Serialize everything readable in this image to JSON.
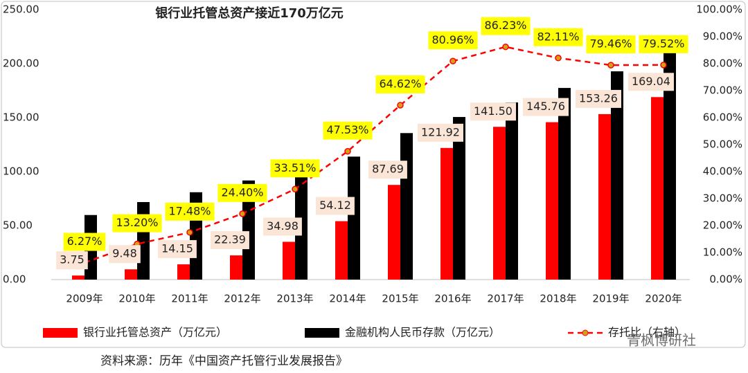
{
  "chart_data": {
    "type": "bar-line",
    "title": "银行业托管总资产接近170万亿元",
    "categories": [
      "2009年",
      "2010年",
      "2011年",
      "2012年",
      "2013年",
      "2014年",
      "2015年",
      "2016年",
      "2017年",
      "2018年",
      "2019年",
      "2020年"
    ],
    "series": [
      {
        "name": "银行业托管总资产（万亿元）",
        "color": "#ff0000",
        "type": "bar",
        "values": [
          3.75,
          9.48,
          14.15,
          22.39,
          34.98,
          54.12,
          87.69,
          121.92,
          141.5,
          145.76,
          153.26,
          169.04
        ],
        "value_labels": [
          "3.75",
          "9.48",
          "14.15",
          "22.39",
          "34.98",
          "54.12",
          "87.69",
          "121.92",
          "141.50",
          "145.76",
          "153.26",
          "169.04"
        ]
      },
      {
        "name": "金融机构人民币存款（万亿元）",
        "color": "#000000",
        "type": "bar",
        "values": [
          59.8,
          71.8,
          80.9,
          91.8,
          104.4,
          113.9,
          135.7,
          150.6,
          164.1,
          177.5,
          192.9,
          212.6
        ]
      },
      {
        "name": "存托比（右轴）",
        "color": "#ff0000",
        "type": "line",
        "axis": "y2",
        "values": [
          6.27,
          13.2,
          17.48,
          24.4,
          33.51,
          47.53,
          64.62,
          80.96,
          86.23,
          82.11,
          79.46,
          79.52
        ],
        "value_labels": [
          "6.27%",
          "13.20%",
          "17.48%",
          "24.40%",
          "33.51%",
          "47.53%",
          "64.62%",
          "80.96%",
          "86.23%",
          "82.11%",
          "79.46%",
          "79.52%"
        ]
      }
    ],
    "ylim": [
      0,
      250
    ],
    "yticks": [
      {
        "value": 0,
        "label": "0.00"
      },
      {
        "value": 50,
        "label": "50.00"
      },
      {
        "value": 100,
        "label": "100.00"
      },
      {
        "value": 150,
        "label": "150.00"
      },
      {
        "value": 200,
        "label": "200.00"
      },
      {
        "value": 250,
        "label": "250.00"
      }
    ],
    "y2lim": [
      0,
      100
    ],
    "y2ticks": [
      {
        "value": 0,
        "label": "0.00%"
      },
      {
        "value": 10,
        "label": "10.00%"
      },
      {
        "value": 20,
        "label": "20.00%"
      },
      {
        "value": 30,
        "label": "30.00%"
      },
      {
        "value": 40,
        "label": "40.00%"
      },
      {
        "value": 50,
        "label": "50.00%"
      },
      {
        "value": 60,
        "label": "60.00%"
      },
      {
        "value": 70,
        "label": "70.00%"
      },
      {
        "value": 80,
        "label": "80.00%"
      },
      {
        "value": 90,
        "label": "90.00%"
      },
      {
        "value": 100,
        "label": "100.00%"
      }
    ],
    "legend": "bottom",
    "watermark": "青枫博研社",
    "source": "资料来源：历年《中国资产托管行业发展报告》"
  }
}
